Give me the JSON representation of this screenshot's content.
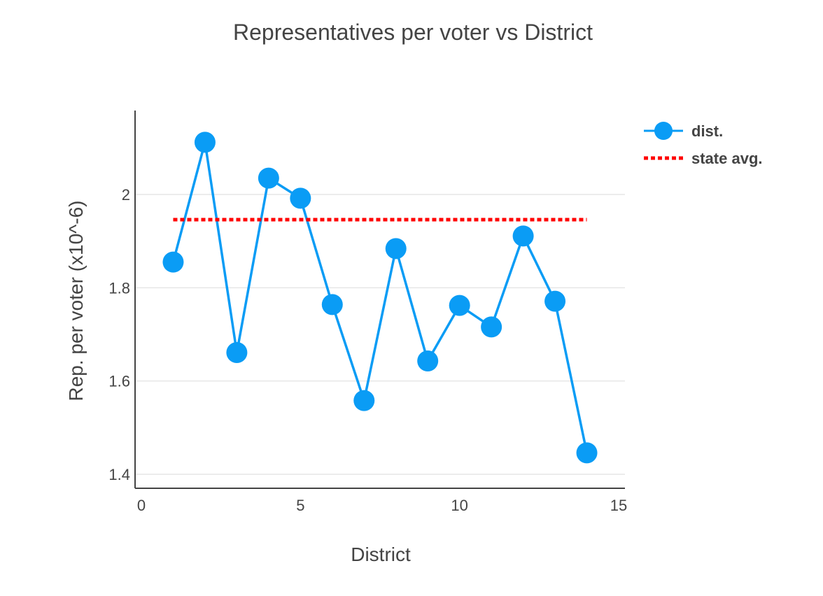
{
  "chart_data": {
    "type": "line",
    "title": "Representatives per voter vs District",
    "xlabel": "District",
    "ylabel": "Rep. per voter (x10^-6)",
    "xlim": [
      0,
      15
    ],
    "ylim": [
      1.37,
      2.18
    ],
    "x_ticks": [
      0,
      5,
      10,
      15
    ],
    "y_ticks": [
      1.4,
      1.6,
      1.8,
      2
    ],
    "x_tick_labels": [
      "0",
      "5",
      "10",
      "15"
    ],
    "y_tick_labels": [
      "1.4",
      "1.6",
      "1.8",
      "2"
    ],
    "grid": "horizontal",
    "legend_position": "top-right",
    "series": [
      {
        "name": "dist.",
        "style": "line+markers",
        "color": "#0a9cf5",
        "x": [
          1,
          2,
          3,
          4,
          5,
          6,
          7,
          8,
          9,
          10,
          11,
          12,
          13,
          14
        ],
        "values": [
          1.855,
          2.112,
          1.661,
          2.035,
          1.992,
          1.764,
          1.558,
          1.884,
          1.643,
          1.762,
          1.716,
          1.911,
          1.771,
          1.446
        ]
      },
      {
        "name": "state avg.",
        "style": "dotted-line",
        "color": "#ff0000",
        "x": [
          1,
          14
        ],
        "values": [
          1.946,
          1.946
        ]
      }
    ]
  }
}
